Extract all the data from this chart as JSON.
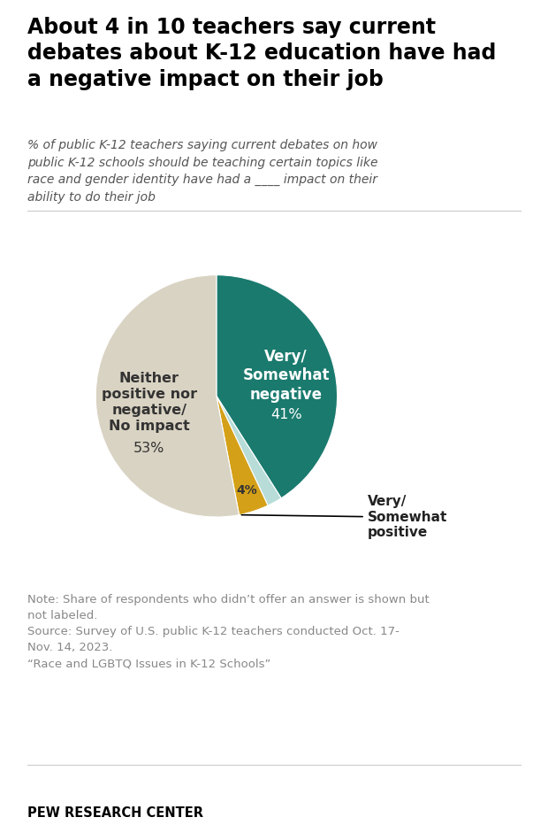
{
  "title": "About 4 in 10 teachers say current\ndebates about K-12 education have had\na negative impact on their job",
  "subtitle": "% of public K-12 teachers saying current debates on how\npublic K-12 schools should be teaching certain topics like\nrace and gender identity have had a ____ impact on their\nability to do their job",
  "slices": [
    41,
    2,
    4,
    53
  ],
  "colors": [
    "#1a7a6e",
    "#b8ddd9",
    "#d4a017",
    "#d9d3c3"
  ],
  "note": "Note: Share of respondents who didn’t offer an answer is shown but\nnot labeled.\nSource: Survey of U.S. public K-12 teachers conducted Oct. 17-\nNov. 14, 2023.\n“Race and LGBTQ Issues in K-12 Schools”",
  "footer": "PEW RESEARCH CENTER",
  "bg_color": "#ffffff",
  "title_color": "#000000",
  "subtitle_color": "#555555",
  "note_color": "#888888",
  "footer_color": "#000000"
}
